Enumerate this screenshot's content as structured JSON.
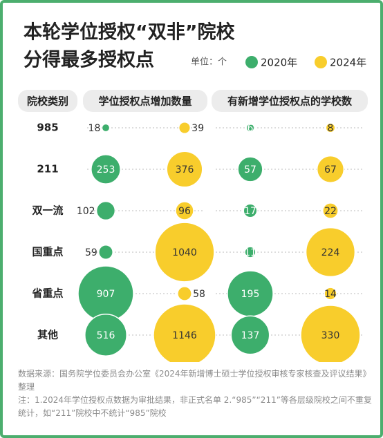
{
  "chart_data": {
    "type": "bubble",
    "title_lines": [
      "本轮学位授权“双非”院校",
      "分得最多授权点"
    ],
    "unit": "单位：个",
    "category_header": "院校类别",
    "categories": [
      "985",
      "211",
      "双一流",
      "国重点",
      "省重点",
      "其他"
    ],
    "legend": [
      {
        "name": "2020年",
        "color": "#3dae6c"
      },
      {
        "name": "2024年",
        "color": "#f8cd2c"
      }
    ],
    "panels": [
      {
        "title": "学位授权点增加数量",
        "series": [
          {
            "name": "2020年",
            "color": "#3dae6c",
            "values": [
              18,
              253,
              102,
              59,
              907,
              516
            ]
          },
          {
            "name": "2024年",
            "color": "#f8cd2c",
            "values": [
              39,
              376,
              96,
              1040,
              58,
              1146
            ]
          }
        ]
      },
      {
        "title": "有新增学位授权点的学校数",
        "series": [
          {
            "name": "2020年",
            "color": "#3dae6c",
            "values": [
              6,
              57,
              17,
              11,
              195,
              137
            ]
          },
          {
            "name": "2024年",
            "color": "#f8cd2c",
            "values": [
              8,
              67,
              22,
              224,
              14,
              330
            ]
          }
        ]
      }
    ],
    "notes": [
      "数据来源：国务院学位委员会办公室《2024年新增博士硕士学位授权审核专家核查及评议结果》整理",
      "注：1.2024年学位授权点数据为审批结果，非正式名单 2.“985”“211”等各层级院校之间不重复统计，如“211”院校中不统计“985”院校"
    ]
  }
}
